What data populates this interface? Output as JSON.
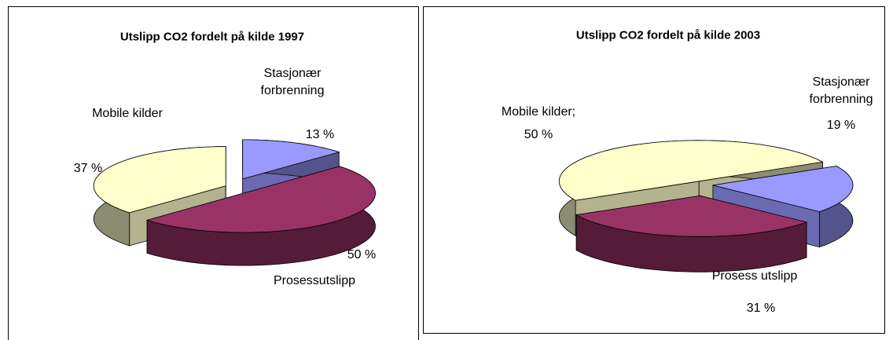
{
  "chart_data": [
    {
      "type": "pie3d",
      "title": "Utslipp CO2 fordelt på kilde 1997",
      "categories": [
        "Stasjonær forbrenning",
        "Prosessutslipp",
        "Mobile kilder"
      ],
      "values": [
        13,
        50,
        37
      ],
      "value_labels": [
        "13 %",
        "50 %",
        "37 %"
      ],
      "colors": [
        "#9999ff",
        "#993366",
        "#ffffcc"
      ]
    },
    {
      "type": "pie3d",
      "title": "Utslipp CO2 fordelt på kilde 2003",
      "categories": [
        "Stasjonær forbrenning",
        "Prosess utslipp",
        "Mobile kilder;"
      ],
      "values": [
        19,
        31,
        50
      ],
      "value_labels": [
        "19 %",
        "31 %",
        "50 %"
      ],
      "colors": [
        "#9999ff",
        "#993366",
        "#ffffcc"
      ]
    }
  ]
}
